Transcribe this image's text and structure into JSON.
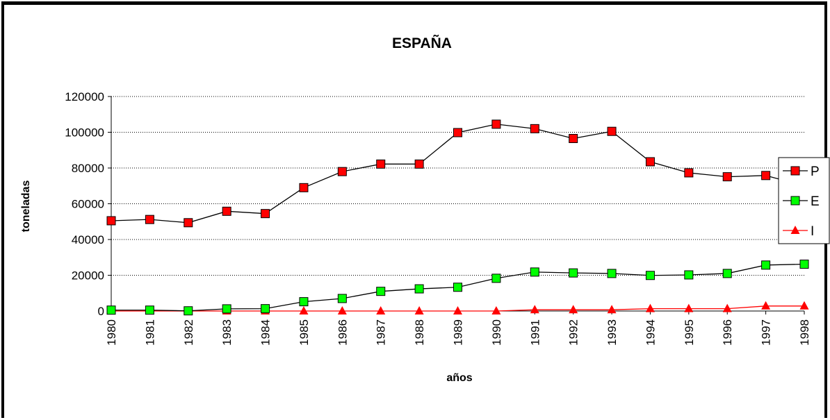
{
  "chart_data": {
    "type": "line",
    "title": "ESPAÑA",
    "xlabel": "años",
    "ylabel": "toneladas",
    "categories": [
      "1980",
      "1981",
      "1982",
      "1983",
      "1984",
      "1985",
      "1986",
      "1987",
      "1988",
      "1989",
      "1990",
      "1991",
      "1992",
      "1993",
      "1994",
      "1995",
      "1996",
      "1997",
      "1998"
    ],
    "ylim": [
      0,
      120000
    ],
    "yticks": [
      "0",
      "20000",
      "40000",
      "60000",
      "80000",
      "100000",
      "120000"
    ],
    "grid": true,
    "legend_position": "right",
    "series": [
      {
        "name": "P",
        "color": "#000000",
        "marker": "square",
        "marker_color": "#ff0000",
        "values": [
          50500,
          51200,
          49400,
          55800,
          54500,
          69000,
          78000,
          82200,
          82200,
          99800,
          104500,
          102000,
          96500,
          100500,
          83500,
          77300,
          75100,
          75800,
          70000
        ]
      },
      {
        "name": "E",
        "color": "#000000",
        "marker": "square",
        "marker_color": "#00ff00",
        "values": [
          500,
          500,
          100,
          1200,
          1300,
          5200,
          7000,
          11000,
          12400,
          13300,
          18300,
          21800,
          21300,
          21000,
          19900,
          20200,
          21000,
          25700,
          26200
        ]
      },
      {
        "name": "I",
        "color": "#ff0000",
        "marker": "triangle",
        "marker_color": "#ff0000",
        "values": [
          0,
          0,
          0,
          0,
          0,
          0,
          0,
          0,
          0,
          0,
          0,
          700,
          700,
          700,
          1300,
          1300,
          1300,
          2800,
          2800
        ]
      }
    ]
  }
}
